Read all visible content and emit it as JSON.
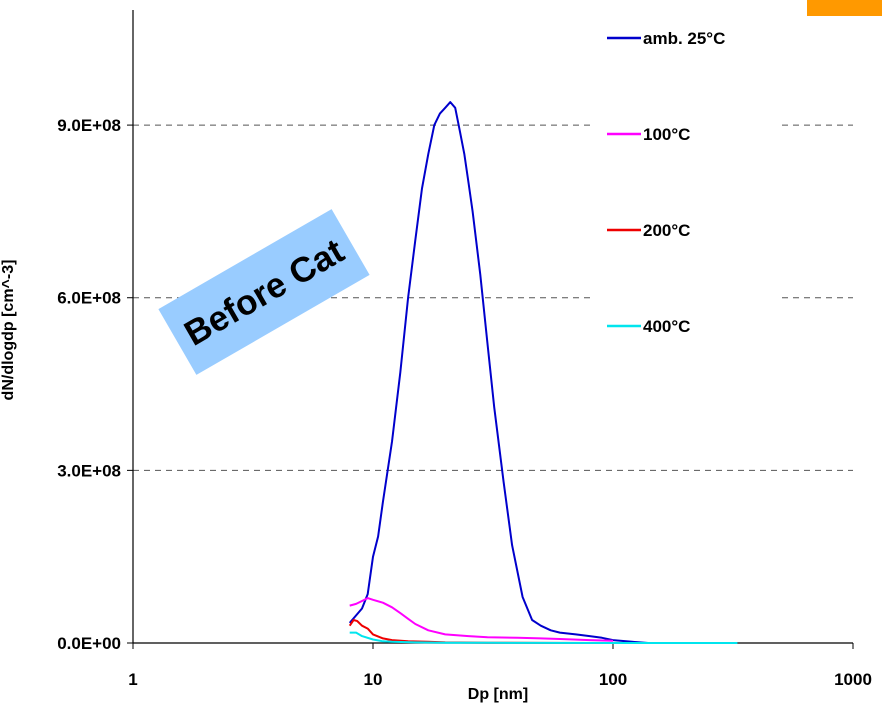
{
  "chart_data": {
    "type": "line",
    "xscale": "log",
    "xlim": [
      1,
      1000
    ],
    "ylim": [
      0,
      1100000000
    ],
    "grid": "horizontal dashed",
    "legend_position": "right",
    "title": "",
    "xlabel": "Dp [nm]",
    "ylabel": "dN/dlogdp [cm^-3]",
    "x_ticks": [
      "1",
      "10",
      "100",
      "1000"
    ],
    "y_ticks": [
      "0.0E+00",
      "3.0E+08",
      "6.0E+08",
      "9.0E+08"
    ],
    "annotation": "Before Cat",
    "series": [
      {
        "name": "amb. 25°C",
        "color": "#0000cc",
        "x": [
          8,
          9,
          9.5,
          10,
          10.5,
          11,
          12,
          13,
          14,
          15,
          16,
          17,
          18,
          19,
          20,
          21,
          22,
          23,
          24,
          25,
          26,
          28,
          30,
          32,
          35,
          38,
          42,
          46,
          50,
          55,
          60,
          70,
          80,
          90,
          100,
          120,
          140
        ],
        "y": [
          35000000,
          60000000,
          85000000,
          150000000,
          185000000,
          245000000,
          350000000,
          470000000,
          600000000,
          700000000,
          790000000,
          850000000,
          900000000,
          920000000,
          930000000,
          940000000,
          930000000,
          890000000,
          850000000,
          800000000,
          750000000,
          640000000,
          520000000,
          410000000,
          280000000,
          170000000,
          80000000,
          40000000,
          30000000,
          22000000,
          18000000,
          15000000,
          12000000,
          9000000,
          5000000,
          2000000,
          0
        ]
      },
      {
        "name": "100°C",
        "color": "#ff00ff",
        "x": [
          8,
          8.5,
          9,
          9.5,
          10,
          11,
          12,
          13,
          14,
          15,
          17,
          20,
          25,
          30,
          40,
          50,
          60,
          80,
          100
        ],
        "y": [
          65000000,
          68000000,
          73000000,
          78000000,
          75000000,
          70000000,
          62000000,
          52000000,
          42000000,
          33000000,
          22000000,
          15000000,
          12000000,
          10000000,
          9000000,
          8000000,
          7000000,
          5000000,
          4000000
        ]
      },
      {
        "name": "200°C",
        "color": "#ee0000",
        "x": [
          8,
          8.3,
          8.6,
          9,
          9.5,
          10,
          11,
          12,
          14,
          17,
          20,
          30,
          50,
          80,
          100
        ],
        "y": [
          30000000,
          40000000,
          38000000,
          30000000,
          25000000,
          15000000,
          8000000,
          5000000,
          3000000,
          2000000,
          1000000,
          500000,
          200000,
          0,
          0
        ]
      },
      {
        "name": "400°C",
        "color": "#00e5ee",
        "x": [
          8,
          8.5,
          9,
          10,
          11,
          12,
          15,
          20,
          30,
          50,
          100,
          200,
          330
        ],
        "y": [
          18000000,
          18000000,
          12000000,
          6000000,
          3000000,
          2000000,
          1000000,
          500000,
          300000,
          100000,
          0,
          0,
          0
        ]
      }
    ]
  }
}
